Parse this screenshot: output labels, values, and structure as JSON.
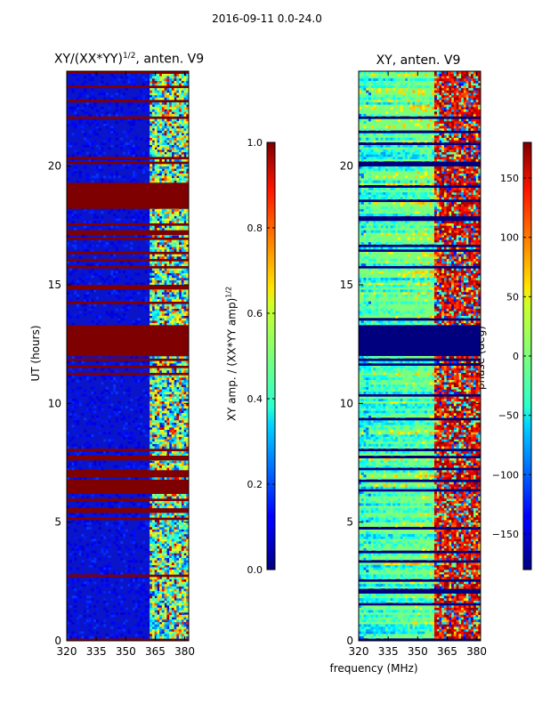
{
  "figure": {
    "suptitle": "2016-09-11 0.0-24.0",
    "xlabel": "frequency (MHz)"
  },
  "chart_data": [
    {
      "type": "heatmap",
      "title_main": "XY/(XX*YY)",
      "title_sup": "1/2",
      "title_tail": ", anten. V9",
      "ylabel": "UT (hours)",
      "xlim": [
        320,
        382
      ],
      "ylim": [
        0,
        24
      ],
      "xticks": [
        320,
        335,
        350,
        365,
        380
      ],
      "xtick_labels": [
        "320",
        "335",
        "350",
        "365",
        "380"
      ],
      "yticks": [
        0,
        5,
        10,
        15,
        20
      ],
      "ytick_labels": [
        "0",
        "5",
        "10",
        "15",
        "20"
      ],
      "colormap": "jet",
      "background_value": 0.1,
      "saturated_bands_hours": [
        [
          12.0,
          13.3
        ],
        [
          7.6,
          7.8
        ],
        [
          6.2,
          6.7
        ],
        [
          14.8,
          15.0
        ],
        [
          17.1,
          17.3
        ],
        [
          18.2,
          19.3
        ]
      ],
      "colorbar": {
        "label_main": "XY amp. / (XX*YY amp)",
        "label_sup": "1/2",
        "min": 0.0,
        "max": 1.0,
        "ticks": [
          0.0,
          0.2,
          0.4,
          0.6,
          0.8,
          1.0
        ],
        "tick_labels": [
          "0.0",
          "0.2",
          "0.4",
          "0.6",
          "0.8",
          "1.0"
        ]
      }
    },
    {
      "type": "heatmap",
      "title": "XY, anten. V9",
      "xlim": [
        320,
        382
      ],
      "ylim": [
        0,
        24
      ],
      "xticks": [
        320,
        335,
        350,
        365,
        380
      ],
      "xtick_labels": [
        "320",
        "335",
        "350",
        "365",
        "380"
      ],
      "yticks": [
        0,
        5,
        10,
        15,
        20
      ],
      "ytick_labels": [
        "0",
        "5",
        "10",
        "15",
        "20"
      ],
      "colormap": "jet",
      "masked_band_hours": [
        12.0,
        13.3
      ],
      "colorbar": {
        "label": "phase (deg)",
        "min": -180,
        "max": 180,
        "ticks": [
          -150,
          -100,
          -50,
          0,
          50,
          100,
          150
        ],
        "tick_labels": [
          "−150",
          "−100",
          "−50",
          "0",
          "50",
          "100",
          "150"
        ]
      }
    }
  ]
}
